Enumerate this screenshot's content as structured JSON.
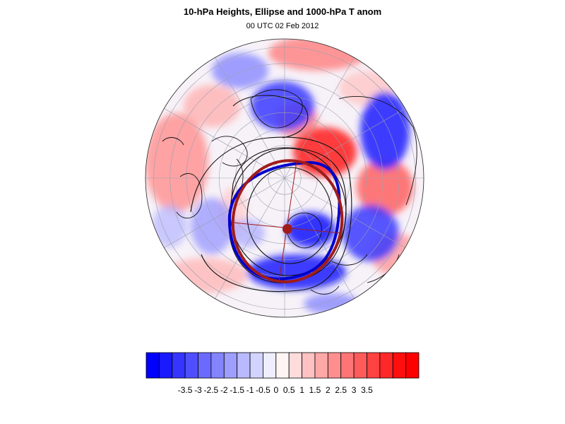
{
  "title": "10-hPa Heights, Ellipse and 1000-hPa T anom",
  "subtitle": "00 UTC 02 Feb 2012",
  "map": {
    "projection": "polar stereographic (north pole)",
    "shading_field": "1000-hPa T anom",
    "contour_field": "10-hPa Heights",
    "ellipse_colors": {
      "fitted_ellipse": "#a01c1c",
      "vortex_edge": "#0000cc",
      "centroid": "#a01c1c"
    }
  },
  "colorbar": {
    "tick_labels": [
      "-3.5",
      "-3",
      "-2.5",
      "-2",
      "-1.5",
      "-1",
      "-0.5",
      "0",
      "0.5",
      "1",
      "1.5",
      "2",
      "2.5",
      "3",
      "3.5"
    ],
    "colors": [
      "#0000ff",
      "#1a1aff",
      "#3535ff",
      "#4f4fff",
      "#6a6aff",
      "#8484ff",
      "#9e9eff",
      "#b9b9ff",
      "#d3d3ff",
      "#eeeeff",
      "#fff5f5",
      "#ffdcdc",
      "#ffc2c2",
      "#ffa8a8",
      "#ff8f8f",
      "#ff7575",
      "#ff5b5b",
      "#ff4242",
      "#ff2828",
      "#ff0e0e",
      "#ff0000"
    ]
  }
}
